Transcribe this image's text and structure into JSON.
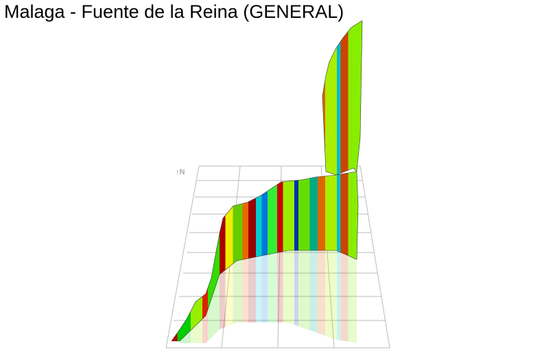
{
  "header": {
    "title": "Malaga - Fuente de la Reina (GENERAL)"
  },
  "map": {
    "north_label": "↑N"
  }
}
